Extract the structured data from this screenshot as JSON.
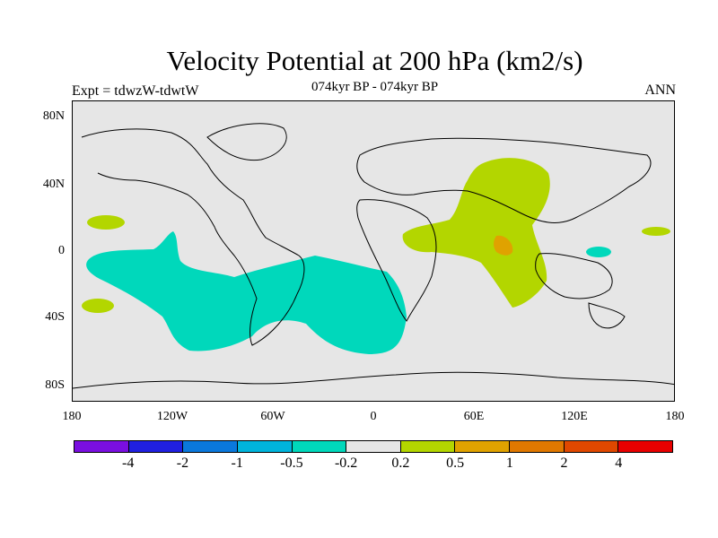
{
  "title": "Velocity Potential at 200 hPa (km2/s)",
  "subtitle": "074kyr BP - 074kyr BP",
  "experiment_label": "Expt = tdwzW-tdwtW",
  "season_label": "ANN",
  "latitude_labels": [
    "80N",
    "40N",
    "0",
    "40S",
    "80S"
  ],
  "longitude_labels": [
    "180",
    "120W",
    "60W",
    "0",
    "60E",
    "120E",
    "180"
  ],
  "colors": {
    "land_outline": "#000000",
    "background": "#e6e6e6",
    "negative_fill": "#00d8bb",
    "positive_fill": "#b3d600",
    "strong_positive_fill": "#e0a200"
  },
  "colorbar": {
    "colors": [
      "#7a0fe0",
      "#2020e0",
      "#0a78dc",
      "#00b4dc",
      "#00d8bb",
      "#e6e6e6",
      "#b3d600",
      "#e0a200",
      "#e07800",
      "#e04800",
      "#e80000"
    ],
    "labels": [
      "-4",
      "-2",
      "-1",
      "-0.5",
      "-0.2",
      "0.2",
      "0.5",
      "1",
      "2",
      "4"
    ]
  }
}
